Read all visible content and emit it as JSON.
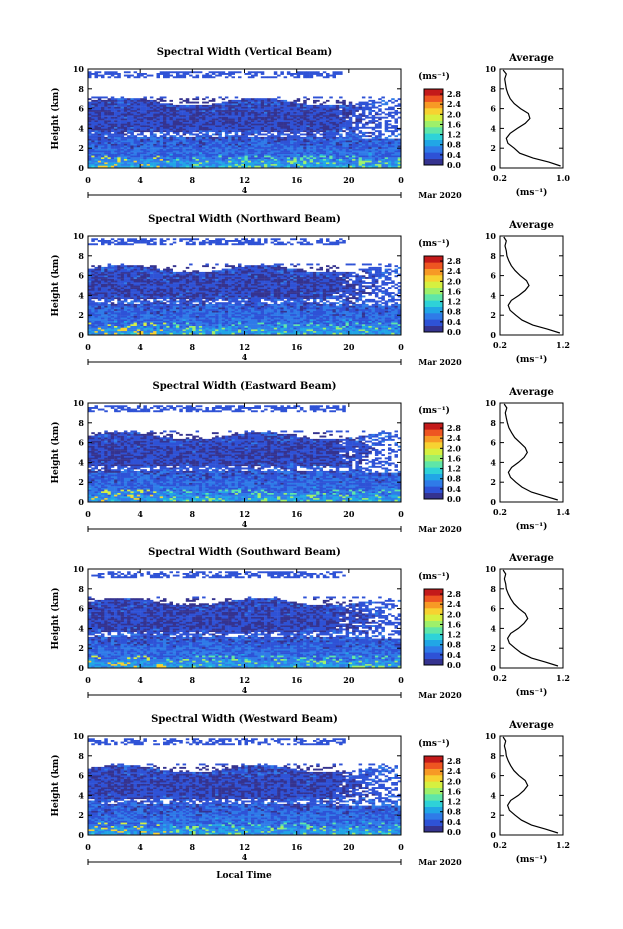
{
  "chart_data": [
    {
      "type": "heatmap",
      "title": "Spectral Width (Vertical Beam)",
      "ylabel": "Height (km)",
      "x_ticks": [
        "0",
        "4",
        "8",
        "12",
        "16",
        "20",
        "0"
      ],
      "y_ticks": [
        "0",
        "2",
        "4",
        "6",
        "8",
        "10"
      ],
      "xlim": [
        0,
        24
      ],
      "ylim": [
        0,
        10
      ],
      "date_label": "4",
      "month_label": "Mar 2020",
      "colorbar": {
        "unit": "(ms⁻¹)",
        "ticks": [
          "0.0",
          "0.4",
          "0.8",
          "1.2",
          "1.6",
          "2.0",
          "2.4",
          "2.8"
        ],
        "range": [
          0,
          3.0
        ]
      },
      "profile": {
        "title": "Average",
        "xlabel": "(ms⁻¹)",
        "xlim": [
          0.2,
          1.0
        ],
        "x_ticks": [
          "0.2",
          "1.0"
        ],
        "height": [
          0.2,
          0.6,
          1.0,
          1.5,
          2.0,
          2.5,
          3.0,
          3.5,
          4.0,
          4.5,
          5.0,
          5.5,
          6.0,
          6.5,
          7.0,
          7.5,
          8.0,
          8.5,
          9.0,
          9.5,
          9.9
        ],
        "value": [
          0.97,
          0.82,
          0.62,
          0.45,
          0.38,
          0.3,
          0.28,
          0.33,
          0.42,
          0.52,
          0.58,
          0.56,
          0.46,
          0.38,
          0.33,
          0.3,
          0.28,
          0.27,
          0.26,
          0.28,
          0.24
        ]
      }
    },
    {
      "type": "heatmap",
      "title": "Spectral Width (Northward Beam)",
      "ylabel": "Height (km)",
      "x_ticks": [
        "0",
        "4",
        "8",
        "12",
        "16",
        "20",
        "0"
      ],
      "y_ticks": [
        "0",
        "2",
        "4",
        "6",
        "8",
        "10"
      ],
      "xlim": [
        0,
        24
      ],
      "ylim": [
        0,
        10
      ],
      "date_label": "4",
      "month_label": "Mar 2020",
      "colorbar": {
        "unit": "(ms⁻¹)",
        "ticks": [
          "0.0",
          "0.4",
          "0.8",
          "1.2",
          "1.6",
          "2.0",
          "2.4",
          "2.8"
        ],
        "range": [
          0,
          3.0
        ]
      },
      "profile": {
        "title": "Average",
        "xlabel": "(ms⁻¹)",
        "xlim": [
          0.2,
          1.2
        ],
        "x_ticks": [
          "0.2",
          "1.2"
        ],
        "height": [
          0.2,
          0.6,
          1.0,
          1.5,
          2.0,
          2.5,
          3.0,
          3.5,
          4.0,
          4.5,
          5.0,
          5.5,
          6.0,
          6.5,
          7.0,
          7.5,
          8.0,
          8.5,
          9.0,
          9.5,
          9.9
        ],
        "value": [
          1.15,
          0.95,
          0.72,
          0.55,
          0.45,
          0.36,
          0.33,
          0.38,
          0.5,
          0.6,
          0.66,
          0.62,
          0.52,
          0.44,
          0.38,
          0.34,
          0.31,
          0.3,
          0.28,
          0.3,
          0.26
        ]
      }
    },
    {
      "type": "heatmap",
      "title": "Spectral Width (Eastward Beam)",
      "ylabel": "Height (km)",
      "x_ticks": [
        "0",
        "4",
        "8",
        "12",
        "16",
        "20",
        "0"
      ],
      "y_ticks": [
        "0",
        "2",
        "4",
        "6",
        "8",
        "10"
      ],
      "xlim": [
        0,
        24
      ],
      "ylim": [
        0,
        10
      ],
      "date_label": "4",
      "month_label": "Mar 2020",
      "colorbar": {
        "unit": "(ms⁻¹)",
        "ticks": [
          "0.0",
          "0.4",
          "0.8",
          "1.2",
          "1.6",
          "2.0",
          "2.4",
          "2.8"
        ],
        "range": [
          0,
          3.0
        ]
      },
      "profile": {
        "title": "Average",
        "xlabel": "(ms⁻¹)",
        "xlim": [
          0.2,
          1.4
        ],
        "x_ticks": [
          "0.2",
          "1.4"
        ],
        "height": [
          0.2,
          0.6,
          1.0,
          1.5,
          2.0,
          2.5,
          3.0,
          3.5,
          4.0,
          4.5,
          5.0,
          5.5,
          6.0,
          6.5,
          7.0,
          7.5,
          8.0,
          8.5,
          9.0,
          9.5,
          9.9
        ],
        "value": [
          1.3,
          1.05,
          0.8,
          0.62,
          0.5,
          0.4,
          0.36,
          0.42,
          0.55,
          0.66,
          0.72,
          0.68,
          0.58,
          0.48,
          0.42,
          0.37,
          0.34,
          0.32,
          0.3,
          0.33,
          0.28
        ]
      }
    },
    {
      "type": "heatmap",
      "title": "Spectral Width (Southward Beam)",
      "ylabel": "Height (km)",
      "x_ticks": [
        "0",
        "4",
        "8",
        "12",
        "16",
        "20",
        "0"
      ],
      "y_ticks": [
        "0",
        "2",
        "4",
        "6",
        "8",
        "10"
      ],
      "xlim": [
        0,
        24
      ],
      "ylim": [
        0,
        10
      ],
      "date_label": "4",
      "month_label": "Mar 2020",
      "colorbar": {
        "unit": "(ms⁻¹)",
        "ticks": [
          "0.0",
          "0.4",
          "0.8",
          "1.2",
          "1.6",
          "2.0",
          "2.4",
          "2.8"
        ],
        "range": [
          0,
          3.0
        ]
      },
      "profile": {
        "title": "Average",
        "xlabel": "(ms⁻¹)",
        "xlim": [
          0.2,
          1.2
        ],
        "x_ticks": [
          "0.2",
          "1.2"
        ],
        "height": [
          0.2,
          0.6,
          1.0,
          1.5,
          2.0,
          2.5,
          3.0,
          3.5,
          4.0,
          4.5,
          5.0,
          5.5,
          6.0,
          6.5,
          7.0,
          7.5,
          8.0,
          8.5,
          9.0,
          9.5,
          9.9
        ],
        "value": [
          1.12,
          0.92,
          0.7,
          0.54,
          0.44,
          0.35,
          0.32,
          0.37,
          0.49,
          0.58,
          0.64,
          0.6,
          0.5,
          0.42,
          0.37,
          0.33,
          0.3,
          0.29,
          0.27,
          0.29,
          0.25
        ]
      }
    },
    {
      "type": "heatmap",
      "title": "Spectral Width (Westward Beam)",
      "ylabel": "Height (km)",
      "x_ticks": [
        "0",
        "4",
        "8",
        "12",
        "16",
        "20",
        "0"
      ],
      "y_ticks": [
        "0",
        "2",
        "4",
        "6",
        "8",
        "10"
      ],
      "xlim": [
        0,
        24
      ],
      "ylim": [
        0,
        10
      ],
      "date_label": "4",
      "month_label": "Mar 2020",
      "colorbar": {
        "unit": "(ms⁻¹)",
        "ticks": [
          "0.0",
          "0.4",
          "0.8",
          "1.2",
          "1.6",
          "2.0",
          "2.4",
          "2.8"
        ],
        "range": [
          0,
          3.0
        ]
      },
      "profile": {
        "title": "Average",
        "xlabel": "(ms⁻¹)",
        "xlim": [
          0.2,
          1.2
        ],
        "x_ticks": [
          "0.2",
          "1.2"
        ],
        "height": [
          0.2,
          0.6,
          1.0,
          1.5,
          2.0,
          2.5,
          3.0,
          3.5,
          4.0,
          4.5,
          5.0,
          5.5,
          6.0,
          6.5,
          7.0,
          7.5,
          8.0,
          8.5,
          9.0,
          9.5,
          9.9
        ],
        "value": [
          1.12,
          0.92,
          0.7,
          0.54,
          0.44,
          0.35,
          0.32,
          0.37,
          0.49,
          0.58,
          0.64,
          0.6,
          0.5,
          0.42,
          0.37,
          0.33,
          0.3,
          0.29,
          0.27,
          0.29,
          0.25
        ]
      }
    }
  ],
  "footer": {
    "xlabel": "Local Time"
  },
  "colormap": [
    "#35338f",
    "#2e52d6",
    "#2f7be8",
    "#21a6e6",
    "#2ed2d8",
    "#5fe6a8",
    "#9ef06a",
    "#d6f040",
    "#f7d231",
    "#f79a25",
    "#ee5521",
    "#c41a1a"
  ]
}
